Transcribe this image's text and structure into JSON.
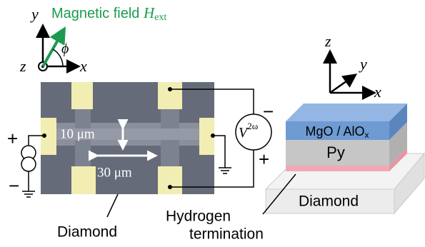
{
  "left_axes": {
    "y": "y",
    "x": "x",
    "z": "z",
    "phi": "ϕ",
    "field_label": "Magnetic field",
    "field_symbol": "H",
    "field_subscript": "ext"
  },
  "device": {
    "width_label": "10 μm",
    "length_label": "30 μm",
    "voltage_symbol": "V",
    "voltage_superscript": "2ω",
    "plus_left": "+",
    "minus_left": "−",
    "plus_right": "+",
    "minus_right": "−",
    "substrate_label": "Diamond"
  },
  "stack": {
    "z": "z",
    "y": "y",
    "x": "x",
    "layer_top": "MgO / AlO",
    "layer_top_subscript": "x",
    "layer_mid": "Py",
    "substrate": "Diamond",
    "interface_line1": "Hydrogen",
    "interface_line2": "termination"
  }
}
